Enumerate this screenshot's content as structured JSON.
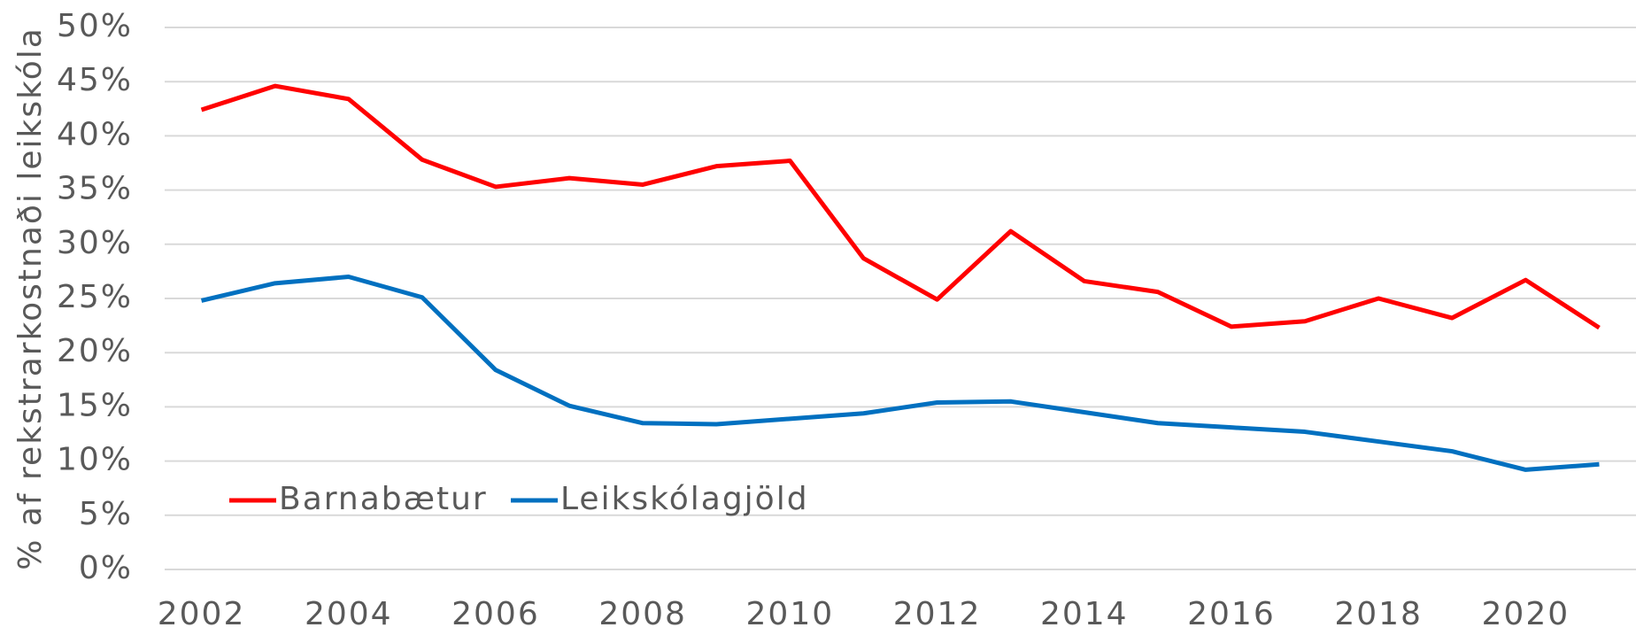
{
  "chart_data": {
    "type": "line",
    "y_label": "% af rekstrarkostnaði leikskóla",
    "x": [
      2002,
      2003,
      2004,
      2005,
      2006,
      2007,
      2008,
      2009,
      2010,
      2011,
      2012,
      2013,
      2014,
      2015,
      2016,
      2017,
      2018,
      2019,
      2020,
      2021
    ],
    "series": [
      {
        "name": "Barnabætur",
        "color": "#ff0000",
        "values": [
          42.4,
          44.6,
          43.4,
          37.8,
          35.3,
          36.1,
          35.5,
          37.2,
          37.7,
          28.7,
          24.9,
          31.2,
          26.6,
          25.6,
          22.4,
          22.9,
          25.0,
          23.2,
          26.7,
          22.3
        ]
      },
      {
        "name": "Leikskólagjöld",
        "color": "#0070c0",
        "values": [
          24.8,
          26.4,
          27.0,
          25.1,
          18.4,
          15.1,
          13.5,
          13.4,
          13.9,
          14.4,
          15.4,
          15.5,
          14.5,
          13.5,
          13.1,
          12.7,
          11.8,
          10.9,
          9.2,
          9.7
        ]
      }
    ],
    "xlim": [
      2001.5,
      2021.5
    ],
    "xticks": [
      2002,
      2004,
      2006,
      2008,
      2010,
      2012,
      2014,
      2016,
      2018,
      2020
    ],
    "ylim": [
      0,
      50
    ],
    "yticks": [
      {
        "value": 0,
        "label": "0%"
      },
      {
        "value": 5,
        "label": "5%"
      },
      {
        "value": 10,
        "label": "10%"
      },
      {
        "value": 15,
        "label": "15%"
      },
      {
        "value": 20,
        "label": "20%"
      },
      {
        "value": 25,
        "label": "25%"
      },
      {
        "value": 30,
        "label": "30%"
      },
      {
        "value": 35,
        "label": "35%"
      },
      {
        "value": 40,
        "label": "40%"
      },
      {
        "value": 45,
        "label": "45%"
      },
      {
        "value": 50,
        "label": "50%"
      }
    ],
    "grid": true,
    "legend": "lower left"
  }
}
